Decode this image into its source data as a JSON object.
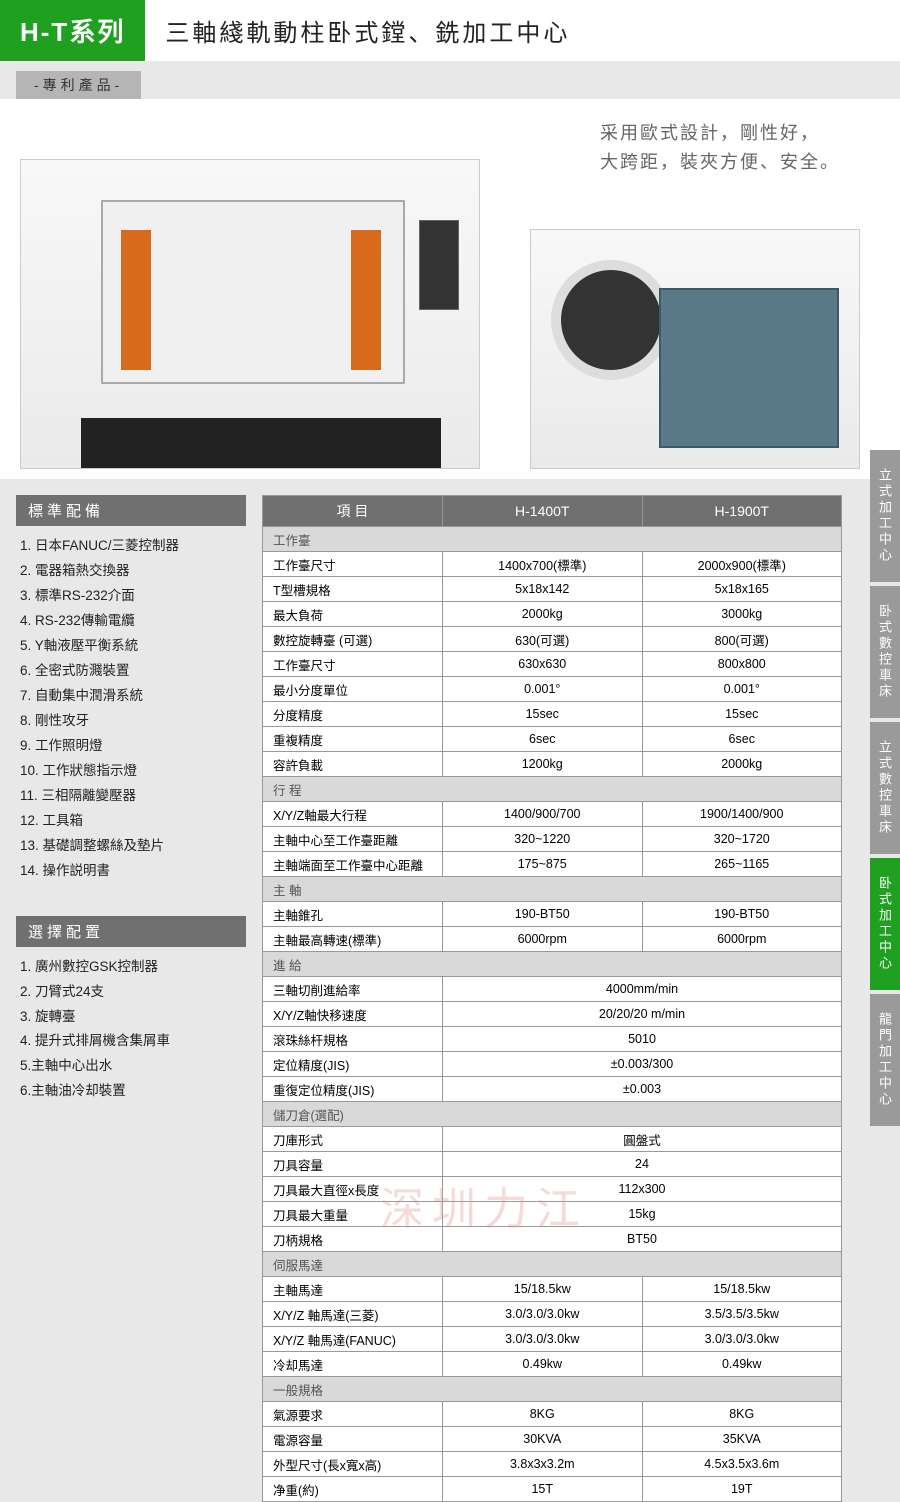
{
  "header": {
    "series": "H-T系列",
    "title": "三軸綫軌動柱卧式鏜、銑加工中心",
    "patent": "-專利產品-"
  },
  "hero": {
    "desc_line1": "采用歐式設計，剛性好，",
    "desc_line2": "大跨距，裝夾方便、安全。"
  },
  "sidebar": {
    "standard": {
      "header": "標準配備",
      "items": [
        "1.  日本FANUC/三菱控制器",
        "2.  電器箱熱交換器",
        "3.  標準RS-232介面",
        "4.  RS-232傳輸電纜",
        "5.  Y軸液壓平衡系統",
        "6.  全密式防濺裝置",
        "7.  自動集中潤滑系統",
        "8.  剛性攻牙",
        "9.  工作照明燈",
        "10. 工作狀態指示燈",
        "11. 三相隔離變壓器",
        "12. 工具箱",
        "13. 基礎調整螺絲及墊片",
        "14. 操作説明書"
      ]
    },
    "optional": {
      "header": "選擇配置",
      "items": [
        "1. 廣州數控GSK控制器",
        "2. 刀臂式24支",
        "3. 旋轉臺",
        "4. 提升式排屑機含集屑車",
        "5.主軸中心出水",
        "6.主軸油冷却裝置"
      ]
    }
  },
  "table": {
    "headers": [
      "項 目",
      "H-1400T",
      "H-1900T"
    ],
    "sections": [
      {
        "name": "工作臺",
        "rows": [
          [
            "工作臺尺寸",
            "1400x700(標準)",
            "2000x900(標準)"
          ],
          [
            "T型槽規格",
            "5x18x142",
            "5x18x165"
          ],
          [
            "最大負荷",
            "2000kg",
            "3000kg"
          ],
          [
            "數控旋轉臺 (可選)",
            "630(可選)",
            "800(可選)"
          ],
          [
            "工作臺尺寸",
            "630x630",
            "800x800"
          ],
          [
            "最小分度單位",
            "0.001°",
            "0.001°"
          ],
          [
            "分度精度",
            "15sec",
            "15sec"
          ],
          [
            "重複精度",
            "6sec",
            "6sec"
          ],
          [
            "容許負載",
            "1200kg",
            "2000kg"
          ]
        ]
      },
      {
        "name": "行 程",
        "rows": [
          [
            "X/Y/Z軸最大行程",
            "1400/900/700",
            "1900/1400/900"
          ],
          [
            "主軸中心至工作臺距離",
            "320~1220",
            "320~1720"
          ],
          [
            "主軸端面至工作臺中心距離",
            "175~875",
            "265~1165"
          ]
        ]
      },
      {
        "name": "主 軸",
        "rows": [
          [
            "主軸錐孔",
            "190-BT50",
            "190-BT50"
          ],
          [
            "主軸最高轉速(標準)",
            "6000rpm",
            "6000rpm"
          ]
        ]
      },
      {
        "name": "進 給",
        "rows_merged": [
          [
            "三軸切削進給率",
            "4000mm/min"
          ],
          [
            "X/Y/Z軸快移速度",
            "20/20/20 m/min"
          ],
          [
            "滾珠絲杆規格",
            "5010"
          ],
          [
            "定位精度(JIS)",
            "±0.003/300"
          ],
          [
            "重復定位精度(JIS)",
            "±0.003"
          ]
        ]
      },
      {
        "name": "儲刀倉(選配)",
        "rows_merged": [
          [
            "刀庫形式",
            "圓盤式"
          ],
          [
            "刀具容量",
            "24"
          ],
          [
            "刀具最大直徑x長度",
            "112x300"
          ],
          [
            "刀具最大重量",
            "15kg"
          ],
          [
            "刀柄規格",
            "BT50"
          ]
        ]
      },
      {
        "name": "伺服馬達",
        "rows": [
          [
            "主軸馬達",
            "15/18.5kw",
            "15/18.5kw"
          ],
          [
            "X/Y/Z 軸馬達(三菱)",
            "3.0/3.0/3.0kw",
            "3.5/3.5/3.5kw"
          ],
          [
            "X/Y/Z 軸馬達(FANUC)",
            "3.0/3.0/3.0kw",
            "3.0/3.0/3.0kw"
          ],
          [
            "冷却馬達",
            "0.49kw",
            "0.49kw"
          ]
        ]
      },
      {
        "name": "一般規格",
        "rows": [
          [
            "氣源要求",
            "8KG",
            "8KG"
          ],
          [
            "電源容量",
            "30KVA",
            "35KVA"
          ],
          [
            "外型尺寸(長x寬x高)",
            "3.8x3x3.2m",
            "4.5x3.5x3.6m"
          ],
          [
            "净重(約)",
            "15T",
            "19T"
          ]
        ]
      }
    ]
  },
  "tabs": [
    "立式加工中心",
    "卧式數控車床",
    "立式數控車床",
    "卧式加工中心",
    "龍門加工中心"
  ],
  "active_tab": 3,
  "watermark": "深圳力江"
}
